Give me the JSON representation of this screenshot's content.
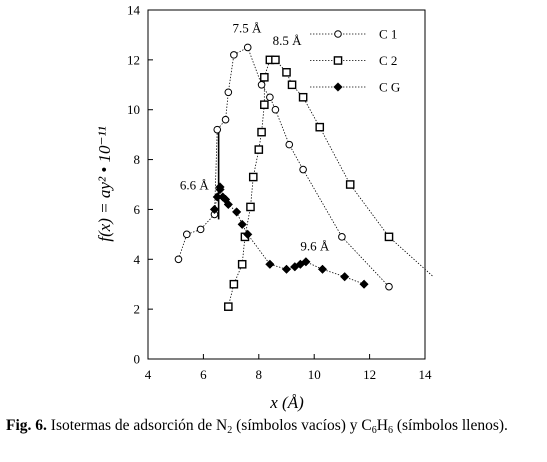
{
  "chart_data": {
    "type": "scatter",
    "xlabel": "x  (Å)",
    "ylabel": "f(x) = ay² • 10⁻¹¹",
    "xlim": [
      4,
      14
    ],
    "ylim": [
      0,
      14
    ],
    "xticks": [
      4,
      6,
      8,
      10,
      12,
      14
    ],
    "yticks": [
      0,
      2,
      4,
      6,
      8,
      10,
      12,
      14
    ],
    "grid": false,
    "legend_position": "top-right",
    "series": [
      {
        "name": "C 1",
        "marker": "circle-open",
        "points": [
          [
            5.1,
            4.0
          ],
          [
            5.4,
            5.0
          ],
          [
            5.9,
            5.2
          ],
          [
            6.4,
            5.8
          ],
          [
            6.5,
            9.2
          ],
          [
            6.8,
            9.6
          ],
          [
            6.9,
            10.7
          ],
          [
            7.1,
            12.2
          ],
          [
            7.6,
            12.5
          ],
          [
            8.1,
            11.0
          ],
          [
            8.4,
            10.5
          ],
          [
            8.6,
            10.0
          ],
          [
            9.1,
            8.6
          ],
          [
            9.6,
            7.6
          ],
          [
            11.0,
            4.9
          ],
          [
            12.7,
            2.9
          ]
        ]
      },
      {
        "name": "C 2",
        "marker": "square-open",
        "points": [
          [
            6.9,
            2.1
          ],
          [
            7.1,
            3.0
          ],
          [
            7.4,
            3.8
          ],
          [
            7.5,
            4.9
          ],
          [
            7.7,
            6.1
          ],
          [
            7.8,
            7.3
          ],
          [
            8.0,
            8.4
          ],
          [
            8.1,
            9.1
          ],
          [
            8.2,
            10.2
          ],
          [
            8.2,
            11.3
          ],
          [
            8.4,
            12.0
          ],
          [
            8.6,
            12.0
          ],
          [
            9.0,
            11.5
          ],
          [
            9.2,
            11.0
          ],
          [
            9.6,
            10.5
          ],
          [
            10.2,
            9.3
          ],
          [
            11.3,
            7.0
          ],
          [
            12.7,
            4.9
          ]
        ]
      },
      {
        "name": "C G",
        "marker": "diamond-filled",
        "points": [
          [
            6.4,
            6.0
          ],
          [
            6.5,
            6.5
          ],
          [
            6.6,
            6.8
          ],
          [
            6.6,
            6.9
          ],
          [
            6.7,
            6.5
          ],
          [
            6.8,
            6.4
          ],
          [
            6.9,
            6.2
          ],
          [
            7.2,
            5.9
          ],
          [
            7.4,
            5.4
          ],
          [
            7.6,
            5.0
          ],
          [
            8.4,
            3.8
          ],
          [
            9.0,
            3.6
          ],
          [
            9.3,
            3.7
          ],
          [
            9.5,
            3.8
          ],
          [
            9.7,
            3.9
          ],
          [
            10.3,
            3.6
          ],
          [
            11.1,
            3.3
          ],
          [
            11.8,
            3.0
          ]
        ]
      }
    ],
    "vertical_line": {
      "x": 6.55,
      "y_from": 5.6,
      "y_to": 9.2
    },
    "c2_tail": [
      12.7,
      4.9,
      14.3,
      3.3
    ],
    "annotations": [
      {
        "text": "7.5 Å",
        "x": 7.05,
        "y": 13.1
      },
      {
        "text": "8.5 Å",
        "x": 8.5,
        "y": 12.6
      },
      {
        "text": "6.6 Å",
        "x": 5.15,
        "y": 6.8
      },
      {
        "text": "9.6 Å",
        "x": 9.5,
        "y": 4.35
      }
    ]
  },
  "caption": {
    "fig_label": "Fig. 6.",
    "text_before_n2": " Isotermas de adsorción de N",
    "n2_sub": "2",
    "text_mid": " (símbolos vacíos) y C",
    "c6_sub": "6",
    "h_text": "H",
    "h6_sub": "6",
    "text_end": " (símbolos llenos)."
  }
}
